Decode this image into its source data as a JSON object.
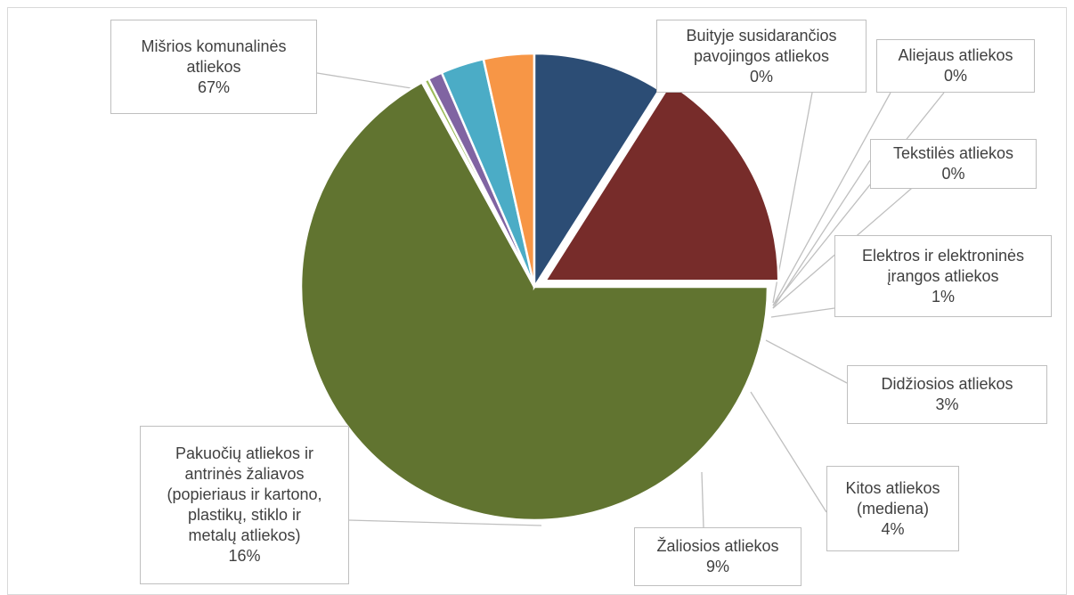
{
  "chart_data": {
    "type": "pie",
    "title": "",
    "slices": [
      {
        "key": "misrios",
        "name": "Mišrios komunalinės atliekos",
        "label_lines": [
          "Mišrios komunalinės",
          "atliekos"
        ],
        "pct_label": "67%",
        "value": 67.0,
        "color": "#617430",
        "exploded": false
      },
      {
        "key": "buitines",
        "name": "Buityje susidarančios pavojingos atliekos",
        "label_lines": [
          "Buityje susidarančios",
          "pavojingos atliekos"
        ],
        "pct_label": "0%",
        "value": 0.15,
        "color": "#c0504d",
        "exploded": false
      },
      {
        "key": "aliejaus",
        "name": "Aliejaus atliekos",
        "label_lines": [
          "Aliejaus atliekos"
        ],
        "pct_label": "0%",
        "value": 0.05,
        "color": "#f79646",
        "exploded": false
      },
      {
        "key": "tekstiles",
        "name": "Tekstilės atliekos",
        "label_lines": [
          "Tekstilės atliekos"
        ],
        "pct_label": "0%",
        "value": 0.3,
        "color": "#9bbb59",
        "exploded": false
      },
      {
        "key": "elektros",
        "name": "Elektros ir elektroninės įrangos atliekos",
        "label_lines": [
          "Elektros ir elektroninės",
          "įrangos atliekos"
        ],
        "pct_label": "1%",
        "value": 1.0,
        "color": "#8064a2",
        "exploded": false
      },
      {
        "key": "didziosios",
        "name": "Didžiosios atliekos",
        "label_lines": [
          "Didžiosios atliekos"
        ],
        "pct_label": "3%",
        "value": 3.0,
        "color": "#4bacc6",
        "exploded": false
      },
      {
        "key": "kitos",
        "name": "Kitos atliekos (mediena)",
        "label_lines": [
          "Kitos atliekos",
          "(mediena)"
        ],
        "pct_label": "4%",
        "value": 3.5,
        "color": "#f79646",
        "exploded": false
      },
      {
        "key": "zaliosios",
        "name": "Žaliosios atliekos",
        "label_lines": [
          "Žaliosios atliekos"
        ],
        "pct_label": "9%",
        "value": 9.0,
        "color": "#2c4d75",
        "exploded": false
      },
      {
        "key": "pakuociu",
        "name": "Pakuočių atliekos ir antrinės žaliavos (popieriaus ir kartono, plastikų, stiklo ir metalų atliekos)",
        "label_lines": [
          "Pakuočių atliekos ir",
          "antrinės žaliavos",
          "(popieriaus ir kartono,",
          "plastikų, stiklo ir",
          "metalų atliekos)"
        ],
        "pct_label": "16%",
        "value": 16.0,
        "color": "#772c2a",
        "exploded": true
      }
    ],
    "start_angle_deg": 0,
    "direction": "clockwise",
    "legend": "none",
    "data_labels": "callouts with leader lines"
  }
}
